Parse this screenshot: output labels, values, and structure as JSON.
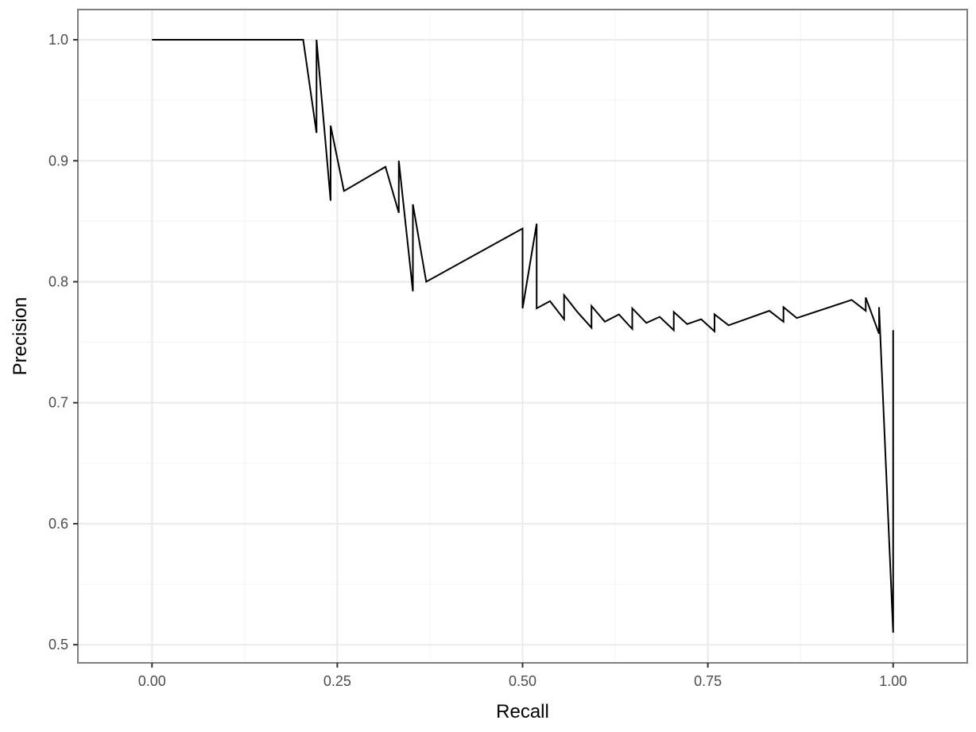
{
  "chart_data": {
    "type": "line",
    "title": "",
    "xlabel": "Recall",
    "ylabel": "Precision",
    "xlim": [
      -0.1,
      1.1
    ],
    "ylim": [
      0.485,
      1.025
    ],
    "x_ticks": [
      0,
      0.25,
      0.5,
      0.75,
      1
    ],
    "x_tick_labels": [
      "0.00",
      "0.25",
      "0.50",
      "0.75",
      "1.00"
    ],
    "y_ticks": [
      0.5,
      0.6,
      0.7,
      0.8,
      0.9,
      1.0
    ],
    "y_tick_labels": [
      "0.5",
      "0.6",
      "0.7",
      "0.8",
      "0.9",
      "1.0"
    ],
    "x_minor_ticks": [
      0.125,
      0.375,
      0.625,
      0.875
    ],
    "y_minor_ticks": [
      0.55,
      0.65,
      0.75,
      0.85,
      0.95
    ],
    "grid": true,
    "legend": "none",
    "colors": {
      "line": "#000000",
      "grid_major": "#ebebeb",
      "grid_minor": "#f5f5f5",
      "panel_border": "#7f7f7f"
    },
    "series": [
      {
        "x": [
          0.0,
          0.204,
          0.222,
          0.222,
          0.241,
          0.241,
          0.259,
          0.315,
          0.333,
          0.333,
          0.352,
          0.352,
          0.37,
          0.5,
          0.5,
          0.519,
          0.519,
          0.537,
          0.556,
          0.556,
          0.574,
          0.593,
          0.593,
          0.611,
          0.63,
          0.648,
          0.648,
          0.667,
          0.685,
          0.704,
          0.704,
          0.722,
          0.741,
          0.759,
          0.759,
          0.778,
          0.833,
          0.852,
          0.852,
          0.87,
          0.944,
          0.963,
          0.963,
          0.981,
          0.981,
          1.0,
          1.0
        ],
        "y": [
          1.0,
          1.0,
          0.923,
          1.0,
          0.867,
          0.929,
          0.875,
          0.895,
          0.857,
          0.9,
          0.792,
          0.864,
          0.8,
          0.844,
          0.778,
          0.848,
          0.778,
          0.784,
          0.769,
          0.789,
          0.775,
          0.762,
          0.78,
          0.767,
          0.773,
          0.761,
          0.778,
          0.766,
          0.771,
          0.76,
          0.775,
          0.765,
          0.769,
          0.759,
          0.773,
          0.764,
          0.776,
          0.767,
          0.779,
          0.77,
          0.785,
          0.776,
          0.787,
          0.757,
          0.779,
          0.51,
          0.76
        ]
      }
    ]
  }
}
